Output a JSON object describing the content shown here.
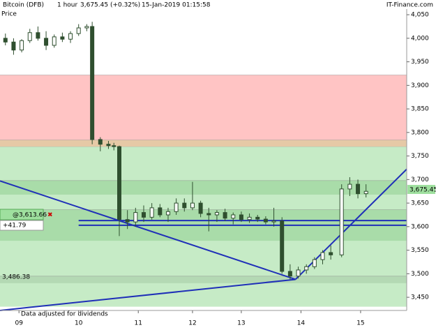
{
  "chart_data": {
    "type": "candlestick",
    "header": {
      "symbol": "Bitcoin (DFB)",
      "interval": "1 hour",
      "quote": "3,675.45 (+0.32%)",
      "timestamp": "15-Jan-2019 01:15:58",
      "brand": "IT-Finance.com"
    },
    "y_label": "Price",
    "footer_note": "Data adjusted for dividends",
    "xlim": [
      0,
      150
    ],
    "xticks": [
      {
        "value": 7,
        "label": "09"
      },
      {
        "value": 29,
        "label": "10"
      },
      {
        "value": 51,
        "label": "11"
      },
      {
        "value": 71,
        "label": "12"
      },
      {
        "value": 89,
        "label": "13"
      },
      {
        "value": 111,
        "label": "14"
      },
      {
        "value": 133,
        "label": "15"
      }
    ],
    "ylim": [
      3422,
      4062
    ],
    "yticks": [
      {
        "value": 3450,
        "label": "3,450"
      },
      {
        "value": 3500,
        "label": "3,500"
      },
      {
        "value": 3550,
        "label": "3,550"
      },
      {
        "value": 3600,
        "label": "3,600"
      },
      {
        "value": 3650,
        "label": "3,650"
      },
      {
        "value": 3700,
        "label": "3,700"
      },
      {
        "value": 3750,
        "label": "3,750"
      },
      {
        "value": 3800,
        "label": "3,800"
      },
      {
        "value": 3850,
        "label": "3,850"
      },
      {
        "value": 3900,
        "label": "3,900"
      },
      {
        "value": 3950,
        "label": "3,950"
      },
      {
        "value": 4000,
        "label": "4,000"
      },
      {
        "value": 4050,
        "label": "4,050"
      }
    ],
    "zones": [
      {
        "from": 3430,
        "to": 3770,
        "color": "#c6ebc6"
      },
      {
        "from": 3784,
        "to": 3922,
        "color": "#ffc4c4"
      },
      {
        "from": 3770,
        "to": 3784,
        "color": "#e6c9a6"
      },
      {
        "from": 3668,
        "to": 3698,
        "color": "#a9dca9"
      },
      {
        "from": 3570,
        "to": 3636,
        "color": "#a9dca9"
      },
      {
        "from": 3480,
        "to": 3495,
        "color": "#b4d9b4"
      }
    ],
    "candle_color": "#2f4f2f",
    "x": [
      2,
      5,
      8,
      11,
      14,
      17,
      20,
      23,
      26,
      29,
      32,
      34,
      37,
      40,
      42,
      44,
      47,
      50,
      53,
      56,
      59,
      62,
      65,
      68,
      71,
      74,
      77,
      80,
      83,
      86,
      89,
      92,
      95,
      98,
      101,
      104,
      107,
      110,
      113,
      116,
      119,
      122,
      126,
      129,
      132,
      135
    ],
    "open": [
      4000,
      3992,
      3975,
      3995,
      4012,
      4000,
      3985,
      4003,
      3998,
      4010,
      4022,
      4025,
      3785,
      3775,
      3772,
      3770,
      3615,
      3610,
      3630,
      3620,
      3640,
      3625,
      3632,
      3650,
      3640,
      3650,
      3628,
      3625,
      3630,
      3618,
      3625,
      3615,
      3620,
      3616,
      3610,
      3612,
      3505,
      3495,
      3508,
      3515,
      3530,
      3545,
      3540,
      3680,
      3690,
      3670
    ],
    "high": [
      4010,
      4000,
      3998,
      4020,
      4025,
      4015,
      4008,
      4012,
      4015,
      4030,
      4030,
      4035,
      3790,
      3782,
      3778,
      3772,
      3635,
      3640,
      3645,
      3650,
      3648,
      3640,
      3660,
      3660,
      3695,
      3655,
      3640,
      3635,
      3638,
      3630,
      3632,
      3628,
      3625,
      3622,
      3640,
      3620,
      3520,
      3515,
      3520,
      3535,
      3550,
      3560,
      3690,
      3705,
      3700,
      3690
    ],
    "low": [
      3985,
      3965,
      3970,
      3990,
      3995,
      3975,
      3980,
      3992,
      3990,
      4005,
      4015,
      3775,
      3760,
      3765,
      3762,
      3580,
      3595,
      3600,
      3610,
      3615,
      3620,
      3610,
      3625,
      3632,
      3635,
      3620,
      3590,
      3610,
      3612,
      3605,
      3610,
      3608,
      3610,
      3605,
      3600,
      3500,
      3488,
      3490,
      3500,
      3510,
      3520,
      3530,
      3535,
      3665,
      3660,
      3662
    ],
    "close": [
      3992,
      3975,
      3995,
      4012,
      4000,
      3985,
      4003,
      3998,
      4010,
      4022,
      4025,
      3785,
      3775,
      3772,
      3770,
      3615,
      3610,
      3630,
      3620,
      3640,
      3625,
      3632,
      3650,
      3640,
      3650,
      3628,
      3625,
      3630,
      3618,
      3625,
      3615,
      3620,
      3616,
      3610,
      3612,
      3505,
      3495,
      3508,
      3515,
      3530,
      3545,
      3540,
      3680,
      3690,
      3670,
      3675
    ],
    "trendlines": [
      {
        "x": [
          0,
          109
        ],
        "y": [
          3697,
          3488
        ],
        "color": "#1f2fb8"
      },
      {
        "x": [
          109,
          150
        ],
        "y": [
          3488,
          3722
        ],
        "color": "#1f2fb8"
      },
      {
        "x": [
          0,
          109
        ],
        "y": [
          3422,
          3488
        ],
        "color": "#1f2fb8"
      },
      {
        "x": [
          29,
          150
        ],
        "y": [
          3613,
          3613
        ],
        "color": "#1f2fb8"
      },
      {
        "x": [
          29,
          150
        ],
        "y": [
          3603,
          3603
        ],
        "color": "#1f2fb8"
      }
    ],
    "annotations": {
      "level_price": "@3,613.66",
      "level_change": "+41.79",
      "low_mark": "3,486.38",
      "last_price": "3,675.45"
    }
  }
}
